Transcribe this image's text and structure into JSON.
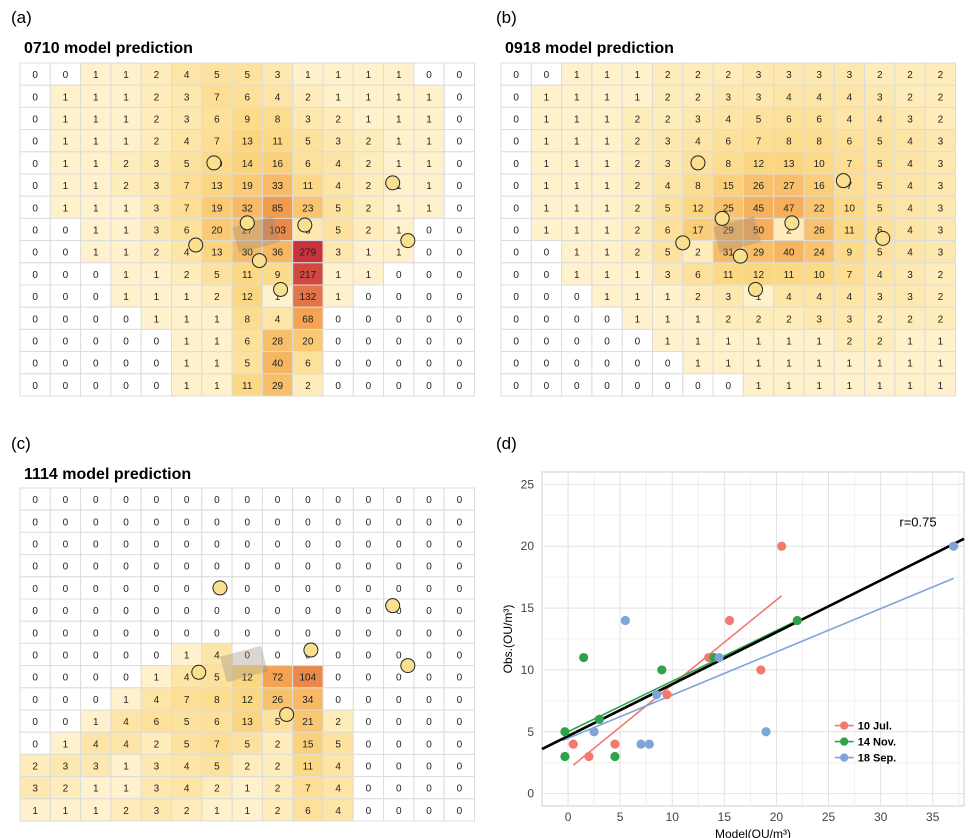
{
  "panels": {
    "a": {
      "letter": "(a)",
      "title": "0710 model prediction"
    },
    "b": {
      "letter": "(b)",
      "title": "0918 model prediction"
    },
    "c": {
      "letter": "(c)",
      "title": "1114 model prediction"
    },
    "d": {
      "letter": "(d)"
    }
  },
  "colors": {
    "grid_line": "#dcdcdc",
    "heat_low": "#fffbe6",
    "heat_mid": "#fcd882",
    "heat_high": "#f3a04e",
    "heat_max": "#c8323c",
    "receptor": "#f8e08e",
    "source": "#9a8a78"
  },
  "chart_data": [
    {
      "type": "heatmap",
      "title": "0710 model prediction",
      "rows": [
        [
          0,
          0,
          1,
          1,
          2,
          4,
          5,
          5,
          3,
          1,
          1,
          1,
          1,
          0,
          0
        ],
        [
          0,
          1,
          1,
          1,
          2,
          3,
          7,
          6,
          4,
          2,
          1,
          1,
          1,
          1,
          0
        ],
        [
          0,
          1,
          1,
          1,
          2,
          3,
          6,
          9,
          8,
          3,
          2,
          1,
          1,
          1,
          0
        ],
        [
          0,
          1,
          1,
          1,
          2,
          4,
          7,
          13,
          11,
          5,
          3,
          2,
          1,
          1,
          0
        ],
        [
          0,
          1,
          1,
          2,
          3,
          5,
          10,
          14,
          16,
          6,
          4,
          2,
          1,
          1,
          0
        ],
        [
          0,
          1,
          1,
          2,
          3,
          7,
          13,
          19,
          33,
          11,
          4,
          2,
          1,
          1,
          0
        ],
        [
          0,
          1,
          1,
          1,
          3,
          7,
          19,
          32,
          85,
          23,
          5,
          2,
          1,
          1,
          0
        ],
        [
          0,
          0,
          1,
          1,
          3,
          6,
          20,
          27,
          103,
          3,
          5,
          2,
          1,
          0,
          0
        ],
        [
          0,
          0,
          1,
          1,
          2,
          4,
          13,
          30,
          36,
          279,
          3,
          1,
          1,
          0,
          0
        ],
        [
          0,
          0,
          0,
          1,
          1,
          2,
          5,
          11,
          9,
          217,
          1,
          1,
          0,
          0,
          0
        ],
        [
          0,
          0,
          0,
          1,
          1,
          1,
          2,
          12,
          1,
          132,
          1,
          0,
          0,
          0,
          0
        ],
        [
          0,
          0,
          0,
          0,
          1,
          1,
          1,
          8,
          4,
          68,
          0,
          0,
          0,
          0,
          0
        ],
        [
          0,
          0,
          0,
          0,
          0,
          1,
          1,
          6,
          28,
          20,
          0,
          0,
          0,
          0,
          0
        ],
        [
          0,
          0,
          0,
          0,
          0,
          1,
          1,
          5,
          40,
          6,
          0,
          0,
          0,
          0,
          0
        ],
        [
          0,
          0,
          0,
          0,
          0,
          1,
          1,
          11,
          29,
          2,
          0,
          0,
          0,
          0,
          0
        ]
      ],
      "receptors": [
        [
          6.4,
          4.5
        ],
        [
          7.5,
          7.2
        ],
        [
          9.4,
          7.3
        ],
        [
          12.3,
          5.4
        ],
        [
          5.8,
          8.2
        ],
        [
          7.9,
          8.9
        ],
        [
          8.6,
          10.2
        ],
        [
          12.8,
          8.0
        ]
      ]
    },
    {
      "type": "heatmap",
      "title": "0918 model prediction",
      "rows": [
        [
          0,
          0,
          1,
          1,
          1,
          2,
          2,
          2,
          3,
          3,
          3,
          3,
          2,
          2,
          2
        ],
        [
          0,
          1,
          1,
          1,
          1,
          2,
          2,
          3,
          3,
          4,
          4,
          4,
          3,
          2,
          2
        ],
        [
          0,
          1,
          1,
          1,
          2,
          2,
          3,
          4,
          5,
          6,
          6,
          4,
          4,
          3,
          2
        ],
        [
          0,
          1,
          1,
          1,
          2,
          3,
          4,
          6,
          7,
          8,
          8,
          6,
          5,
          4,
          3
        ],
        [
          0,
          1,
          1,
          1,
          2,
          3,
          5,
          8,
          12,
          13,
          10,
          7,
          5,
          4,
          3
        ],
        [
          0,
          1,
          1,
          1,
          2,
          4,
          8,
          15,
          26,
          27,
          16,
          7,
          5,
          4,
          3
        ],
        [
          0,
          1,
          1,
          1,
          2,
          5,
          12,
          25,
          45,
          47,
          22,
          10,
          5,
          4,
          3
        ],
        [
          0,
          1,
          1,
          1,
          2,
          6,
          17,
          29,
          50,
          2,
          26,
          11,
          6,
          4,
          3
        ],
        [
          0,
          0,
          1,
          1,
          2,
          5,
          2,
          31,
          29,
          40,
          24,
          9,
          5,
          4,
          3
        ],
        [
          0,
          0,
          1,
          1,
          1,
          3,
          6,
          11,
          12,
          11,
          10,
          7,
          4,
          3,
          2
        ],
        [
          0,
          0,
          0,
          1,
          1,
          1,
          2,
          3,
          1,
          4,
          4,
          4,
          3,
          3,
          2
        ],
        [
          0,
          0,
          0,
          0,
          1,
          1,
          1,
          2,
          2,
          2,
          3,
          3,
          2,
          2,
          2
        ],
        [
          0,
          0,
          0,
          0,
          0,
          1,
          1,
          1,
          1,
          1,
          1,
          2,
          2,
          1,
          1
        ],
        [
          0,
          0,
          0,
          0,
          0,
          0,
          1,
          1,
          1,
          1,
          1,
          1,
          1,
          1,
          1
        ],
        [
          0,
          0,
          0,
          0,
          0,
          0,
          0,
          0,
          1,
          1,
          1,
          1,
          1,
          1,
          1
        ]
      ],
      "receptors": [
        [
          6.5,
          4.5
        ],
        [
          7.3,
          7.0
        ],
        [
          9.6,
          7.2
        ],
        [
          11.3,
          5.3
        ],
        [
          6.0,
          8.1
        ],
        [
          7.9,
          8.7
        ],
        [
          8.4,
          10.2
        ],
        [
          12.6,
          7.9
        ]
      ]
    },
    {
      "type": "heatmap",
      "title": "1114 model prediction",
      "rows": [
        [
          0,
          0,
          0,
          0,
          0,
          0,
          0,
          0,
          0,
          0,
          0,
          0,
          0,
          0,
          0
        ],
        [
          0,
          0,
          0,
          0,
          0,
          0,
          0,
          0,
          0,
          0,
          0,
          0,
          0,
          0,
          0
        ],
        [
          0,
          0,
          0,
          0,
          0,
          0,
          0,
          0,
          0,
          0,
          0,
          0,
          0,
          0,
          0
        ],
        [
          0,
          0,
          0,
          0,
          0,
          0,
          0,
          0,
          0,
          0,
          0,
          0,
          0,
          0,
          0
        ],
        [
          0,
          0,
          0,
          0,
          0,
          0,
          0,
          0,
          0,
          0,
          0,
          0,
          0,
          0,
          0
        ],
        [
          0,
          0,
          0,
          0,
          0,
          0,
          0,
          0,
          0,
          0,
          0,
          0,
          0,
          0,
          0
        ],
        [
          0,
          0,
          0,
          0,
          0,
          0,
          0,
          0,
          0,
          0,
          0,
          0,
          0,
          0,
          0
        ],
        [
          0,
          0,
          0,
          0,
          0,
          1,
          4,
          0,
          0,
          0,
          0,
          0,
          0,
          0,
          0
        ],
        [
          0,
          0,
          0,
          0,
          1,
          4,
          5,
          12,
          72,
          104,
          0,
          0,
          0,
          0,
          0
        ],
        [
          0,
          0,
          0,
          1,
          4,
          7,
          8,
          12,
          26,
          34,
          0,
          0,
          0,
          0,
          0
        ],
        [
          0,
          0,
          1,
          4,
          6,
          5,
          6,
          13,
          5,
          21,
          2,
          0,
          0,
          0,
          0
        ],
        [
          0,
          1,
          4,
          4,
          2,
          5,
          7,
          5,
          2,
          15,
          5,
          0,
          0,
          0,
          0
        ],
        [
          2,
          3,
          3,
          1,
          3,
          4,
          5,
          2,
          2,
          11,
          4,
          0,
          0,
          0,
          0
        ],
        [
          3,
          2,
          1,
          1,
          3,
          4,
          2,
          1,
          2,
          7,
          4,
          0,
          0,
          0,
          0
        ],
        [
          1,
          1,
          1,
          2,
          3,
          2,
          1,
          1,
          2,
          6,
          4,
          0,
          0,
          0,
          0
        ]
      ],
      "receptors": [
        [
          6.6,
          4.5
        ],
        [
          9.6,
          7.3
        ],
        [
          12.3,
          5.3
        ],
        [
          5.9,
          8.3
        ],
        [
          8.8,
          10.2
        ],
        [
          12.8,
          8.0
        ]
      ]
    },
    {
      "type": "scatter",
      "xlabel": "Model(OU/m³)",
      "ylabel": "Obs.(OU/m³)",
      "xlim": [
        -2.5,
        38
      ],
      "ylim": [
        -1,
        26
      ],
      "xticks": [
        0,
        5,
        10,
        15,
        20,
        25,
        30,
        35
      ],
      "yticks": [
        0,
        5,
        10,
        15,
        20,
        25
      ],
      "annotation": "r=0.75",
      "series": [
        {
          "name": "10 Jul.",
          "color": "#f07a70",
          "x": [
            0.5,
            2.0,
            4.5,
            9.5,
            13.5,
            15.5,
            18.5,
            20.5
          ],
          "y": [
            4.0,
            3.0,
            4.0,
            8.0,
            11.0,
            14.0,
            10.0,
            20.0
          ],
          "fit": [
            [
              0.5,
              2.3
            ],
            [
              20.5,
              16.0
            ]
          ]
        },
        {
          "name": "14 Nov.",
          "color": "#2fa34a",
          "x": [
            -0.3,
            1.5,
            -0.3,
            3.0,
            4.5,
            9.0,
            14.0,
            22.0
          ],
          "y": [
            5.0,
            11.0,
            3.0,
            6.0,
            3.0,
            10.0,
            11.0,
            14.0
          ],
          "fit": [
            [
              -0.5,
              4.8
            ],
            [
              22.0,
              14.0
            ]
          ]
        },
        {
          "name": "18 Sep.",
          "color": "#7ea4d8",
          "x": [
            2.5,
            5.5,
            7.0,
            7.8,
            8.5,
            14.5,
            19.0,
            37.0
          ],
          "y": [
            5.0,
            14.0,
            4.0,
            4.0,
            8.0,
            11.0,
            5.0,
            20.0
          ],
          "fit": [
            [
              -0.5,
              4.3
            ],
            [
              37.0,
              17.4
            ]
          ]
        }
      ],
      "overall_fit": {
        "color": "#000000",
        "line": [
          [
            -2.5,
            3.6
          ],
          [
            38,
            20.6
          ]
        ]
      }
    }
  ]
}
